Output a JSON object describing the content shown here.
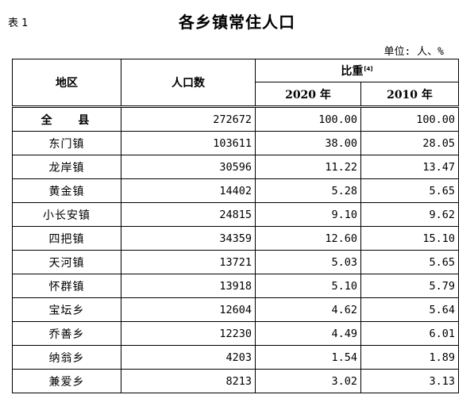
{
  "table_no": "表 1",
  "title": "各乡镇常住人口",
  "unit": "单位: 人、%",
  "headers": {
    "region": "地区",
    "population": "人口数",
    "ratio": "比重",
    "ratio_note": "[4]",
    "year_2020": "2020 年",
    "year_2010": "2010 年"
  },
  "rows": [
    {
      "name": "全 县",
      "population": "272672",
      "r2020": "100.00",
      "r2010": "100.00"
    },
    {
      "name": "东门镇",
      "population": "103611",
      "r2020": "38.00",
      "r2010": "28.05"
    },
    {
      "name": "龙岸镇",
      "population": "30596",
      "r2020": "11.22",
      "r2010": "13.47"
    },
    {
      "name": "黄金镇",
      "population": "14402",
      "r2020": "5.28",
      "r2010": "5.65"
    },
    {
      "name": "小长安镇",
      "population": "24815",
      "r2020": "9.10",
      "r2010": "9.62"
    },
    {
      "name": "四把镇",
      "population": "34359",
      "r2020": "12.60",
      "r2010": "15.10"
    },
    {
      "name": "天河镇",
      "population": "13721",
      "r2020": "5.03",
      "r2010": "5.65"
    },
    {
      "name": "怀群镇",
      "population": "13918",
      "r2020": "5.10",
      "r2010": "5.79"
    },
    {
      "name": "宝坛乡",
      "population": "12604",
      "r2020": "4.62",
      "r2010": "5.64"
    },
    {
      "name": "乔善乡",
      "population": "12230",
      "r2020": "4.49",
      "r2010": "6.01"
    },
    {
      "name": "纳翁乡",
      "population": "4203",
      "r2020": "1.54",
      "r2010": "1.89"
    },
    {
      "name": "兼爱乡",
      "population": "8213",
      "r2020": "3.02",
      "r2010": "3.13"
    }
  ]
}
